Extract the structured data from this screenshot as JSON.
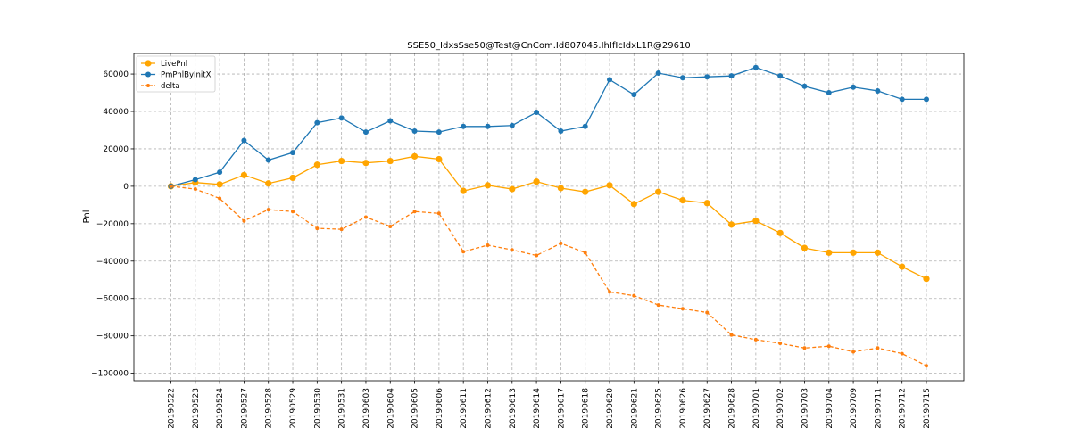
{
  "chart_data": {
    "type": "line",
    "title": "SSE50_IdxsSse50@Test@CnCom.Id807045.IhIfIcIdxL1R@29610",
    "xlabel": "",
    "ylabel": "Pnl",
    "ylim": [
      -104000,
      71000
    ],
    "yticks": [
      -100000,
      -80000,
      -60000,
      -40000,
      -20000,
      0,
      20000,
      40000,
      60000
    ],
    "grid": true,
    "legend_position": "upper-left",
    "categories": [
      "20190522",
      "20190523",
      "20190524",
      "20190527",
      "20190528",
      "20190529",
      "20190530",
      "20190531",
      "20190603",
      "20190604",
      "20190605",
      "20190606",
      "20190611",
      "20190612",
      "20190613",
      "20190614",
      "20190617",
      "20190618",
      "20190620",
      "20190621",
      "20190625",
      "20190626",
      "20190627",
      "20190628",
      "20190701",
      "20190702",
      "20190703",
      "20190704",
      "20190709",
      "20190711",
      "20190712",
      "20190715"
    ],
    "series": [
      {
        "name": "LivePnl",
        "color": "#ffa500",
        "style": "solid",
        "marker_size": "large",
        "values": [
          0,
          2000,
          1000,
          6000,
          1500,
          4500,
          11500,
          13500,
          12500,
          13500,
          16000,
          14500,
          -2500,
          500,
          -1500,
          2500,
          -1000,
          -3000,
          500,
          -9500,
          -3000,
          -7500,
          -9000,
          -20500,
          -18500,
          -25000,
          -33000,
          -35500,
          -35500,
          -35500,
          -43000,
          -49500
        ]
      },
      {
        "name": "PmPnlByInitX",
        "color": "#1f77b4",
        "style": "solid",
        "marker_size": "medium",
        "values": [
          0,
          3500,
          7500,
          24500,
          14000,
          18000,
          34000,
          36500,
          29000,
          35000,
          29500,
          29000,
          32000,
          32000,
          32500,
          39500,
          29500,
          32000,
          57000,
          49000,
          60500,
          58000,
          58500,
          59000,
          63500,
          59000,
          53500,
          50000,
          53000,
          51000,
          46500,
          46500
        ]
      },
      {
        "name": "delta",
        "color": "#ff7f0e",
        "style": "dashed",
        "marker_size": "small",
        "values": [
          0,
          -1500,
          -6500,
          -18500,
          -12500,
          -13500,
          -22500,
          -23000,
          -16500,
          -21500,
          -13500,
          -14500,
          -35000,
          -31500,
          -34000,
          -37000,
          -30500,
          -35500,
          -56500,
          -58500,
          -63500,
          -65500,
          -67500,
          -79500,
          -82000,
          -84000,
          -86500,
          -85500,
          -88500,
          -86500,
          -89500,
          -96000
        ]
      }
    ]
  }
}
